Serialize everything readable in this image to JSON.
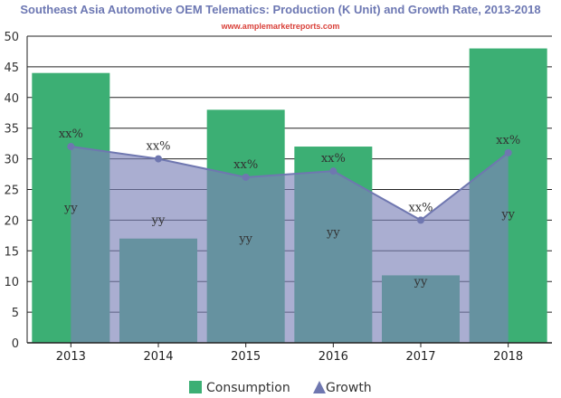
{
  "chart_data": {
    "type": "bar",
    "title": "Southeast Asia Automotive OEM Telematics: Production (K Unit) and Growth Rate, 2013-2018",
    "subtitle": "www.amplemarketreports.com",
    "categories": [
      "2013",
      "2014",
      "2015",
      "2016",
      "2017",
      "2018"
    ],
    "ylim": [
      0,
      50
    ],
    "yticks": [
      0,
      5,
      10,
      15,
      20,
      25,
      30,
      35,
      40,
      45,
      50
    ],
    "grid": true,
    "legend_position": "bottom",
    "series": [
      {
        "name": "Consumption",
        "type": "bar",
        "color": "#3caf74",
        "values": [
          44,
          17,
          38,
          32,
          11,
          48
        ],
        "data_labels": [
          "yy",
          "yy",
          "yy",
          "yy",
          "yy",
          "yy"
        ]
      },
      {
        "name": "Growth",
        "type": "area",
        "color": "#6f77b0",
        "fill": "#7d83b8",
        "values": [
          32,
          30,
          27,
          28,
          20,
          31
        ],
        "data_labels": [
          "xx%",
          "xx%",
          "xx%",
          "xx%",
          "xx%",
          "xx%"
        ]
      }
    ]
  }
}
